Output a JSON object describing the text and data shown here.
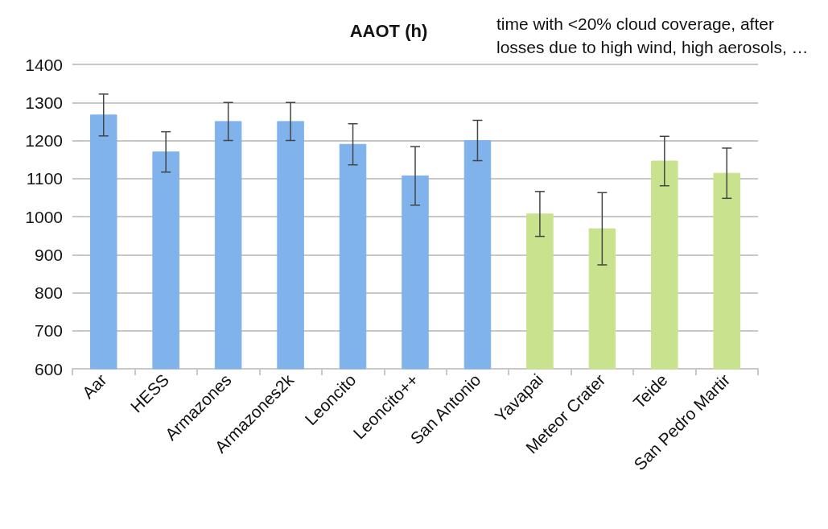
{
  "chart_data": {
    "type": "bar",
    "title": "AAOT (h)",
    "annotations": [
      "time with <20% cloud coverage, after losses due to high wind, high aerosols, …"
    ],
    "categories": [
      "Aar",
      "HESS",
      "Armazones",
      "Armazones2k",
      "Leoncito",
      "Leoncito++",
      "San Antonio",
      "Yavapai",
      "Meteor Crater",
      "Teide",
      "San Pedro Martir"
    ],
    "values": [
      1267,
      1170,
      1250,
      1250,
      1190,
      1107,
      1200,
      1007,
      968,
      1146,
      1114
    ],
    "errors": [
      55,
      53,
      50,
      50,
      54,
      77,
      53,
      59,
      95,
      65,
      66
    ],
    "colors": [
      "#80b2ec",
      "#80b2ec",
      "#80b2ec",
      "#80b2ec",
      "#80b2ec",
      "#80b2ec",
      "#80b2ec",
      "#c9e28e",
      "#c9e28e",
      "#c9e28e",
      "#c9e28e"
    ],
    "ylim": [
      600,
      1400
    ],
    "yticks": [
      600,
      700,
      800,
      900,
      1000,
      1100,
      1200,
      1300,
      1400
    ],
    "grid": "y"
  }
}
